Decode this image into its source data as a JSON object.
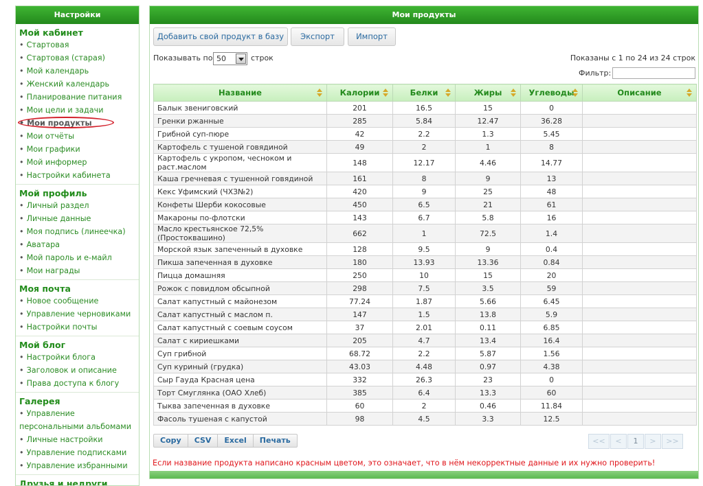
{
  "sidebar": {
    "header": "Настройки",
    "sections": [
      {
        "title": "Мой кабинет",
        "items": [
          "Стартовая",
          "Стартовая (старая)",
          "Мой календарь",
          "Женский календарь",
          "Планирование питания",
          "Мои цели и задачи",
          "Мои продукты",
          "Мои отчёты",
          "Мои графики",
          "Мой информер",
          "Настройки кабинета"
        ],
        "active_index": 6
      },
      {
        "title": "Мой профиль",
        "items": [
          "Личный раздел",
          "Личные данные",
          "Моя подпись (линеечка)",
          "Аватара",
          "Мой пароль и е-майл",
          "Мои награды"
        ]
      },
      {
        "title": "Моя почта",
        "items": [
          "Новое сообщение",
          "Управление черновиками",
          "Настройки почты"
        ]
      },
      {
        "title": "Мой блог",
        "items": [
          "Настройки блога",
          "Заголовок и описание",
          "Права доступа к блогу"
        ]
      },
      {
        "title": "Галерея",
        "items": [
          "Управление персональными альбомами",
          "Личные настройки",
          "Управление подписками",
          "Управление избранными"
        ]
      },
      {
        "title": "Друзья и недруги",
        "items": []
      }
    ]
  },
  "main": {
    "header": "Мои продукты",
    "buttons": {
      "add": "Добавить свой продукт в базу",
      "export": "Экспорт",
      "import": "Импорт"
    },
    "show_label": "Показывать по",
    "show_value": "50",
    "rows_label": "строк",
    "info": "Показаны с 1 по 24 из 24 строк",
    "filter_label": "Фильтр:",
    "filter_value": "",
    "columns": [
      "Название",
      "Калории",
      "Белки",
      "Жиры",
      "Углеводы",
      "Описание"
    ],
    "rows": [
      [
        "Балык звениговский",
        "201",
        "16.5",
        "15",
        "0",
        ""
      ],
      [
        "Гренки ржанные",
        "285",
        "5.84",
        "12.47",
        "36.28",
        ""
      ],
      [
        "Грибной суп-пюре",
        "42",
        "2.2",
        "1.3",
        "5.45",
        ""
      ],
      [
        "Картофель с тушеной говядиной",
        "49",
        "2",
        "1",
        "8",
        ""
      ],
      [
        "Картофель с укропом, чесноком и раст.маслом",
        "148",
        "12.17",
        "4.46",
        "14.77",
        ""
      ],
      [
        "Каша гречневая с тушенной говядиной",
        "161",
        "8",
        "9",
        "13",
        ""
      ],
      [
        "Кекс Уфимский (ЧХЗ№2)",
        "420",
        "9",
        "25",
        "48",
        ""
      ],
      [
        "Конфеты Шерби кокосовые",
        "450",
        "6.5",
        "21",
        "61",
        ""
      ],
      [
        "Макароны по-флотски",
        "143",
        "6.7",
        "5.8",
        "16",
        ""
      ],
      [
        "Масло крестьянское 72,5% (Простоквашино)",
        "662",
        "1",
        "72.5",
        "1.4",
        ""
      ],
      [
        "Морской язык запеченный в духовке",
        "128",
        "9.5",
        "9",
        "0.4",
        ""
      ],
      [
        "Пикша запеченная в духовке",
        "180",
        "13.93",
        "13.36",
        "0.84",
        ""
      ],
      [
        "Пицца домашняя",
        "250",
        "10",
        "15",
        "20",
        ""
      ],
      [
        "Рожок с повидлом обсыпной",
        "298",
        "7.5",
        "3.5",
        "59",
        ""
      ],
      [
        "Салат капустный с майонезом",
        "77.24",
        "1.87",
        "5.66",
        "6.45",
        ""
      ],
      [
        "Салат капустный с маслом п.",
        "147",
        "1.5",
        "13.8",
        "5.9",
        ""
      ],
      [
        "Салат капустный с соевым соусом",
        "37",
        "2.01",
        "0.11",
        "6.85",
        ""
      ],
      [
        "Салат с кириешками",
        "205",
        "4.7",
        "13.4",
        "16.4",
        ""
      ],
      [
        "Суп грибной",
        "68.72",
        "2.2",
        "5.87",
        "1.56",
        ""
      ],
      [
        "Суп куриный (грудка)",
        "43.03",
        "4.48",
        "0.97",
        "4.38",
        ""
      ],
      [
        "Сыр Гауда Красная цена",
        "332",
        "26.3",
        "23",
        "0",
        ""
      ],
      [
        "Торт Смуглянка (ОАО Хлеб)",
        "385",
        "6.4",
        "13.3",
        "60",
        ""
      ],
      [
        "Тыква запеченная в духовке",
        "60",
        "2",
        "0.46",
        "11.84",
        ""
      ],
      [
        "Фасоль тушеная с капустой",
        "98",
        "4.5",
        "3.3",
        "12.5",
        ""
      ]
    ],
    "tools": [
      "Copy",
      "CSV",
      "Excel",
      "Печать"
    ],
    "pager": {
      "first": "<<",
      "prev": "<",
      "page": "1",
      "next": ">",
      "last": ">>"
    },
    "warning": "Если название продукта написано красным цветом, это означает, что в нём некорректные данные и их нужно проверить!"
  },
  "colors": {
    "header_green": "#2e9f26",
    "link_green": "#2b8c24",
    "warning_red": "#e0151b",
    "highlight_ellipse": "#d2202a"
  }
}
